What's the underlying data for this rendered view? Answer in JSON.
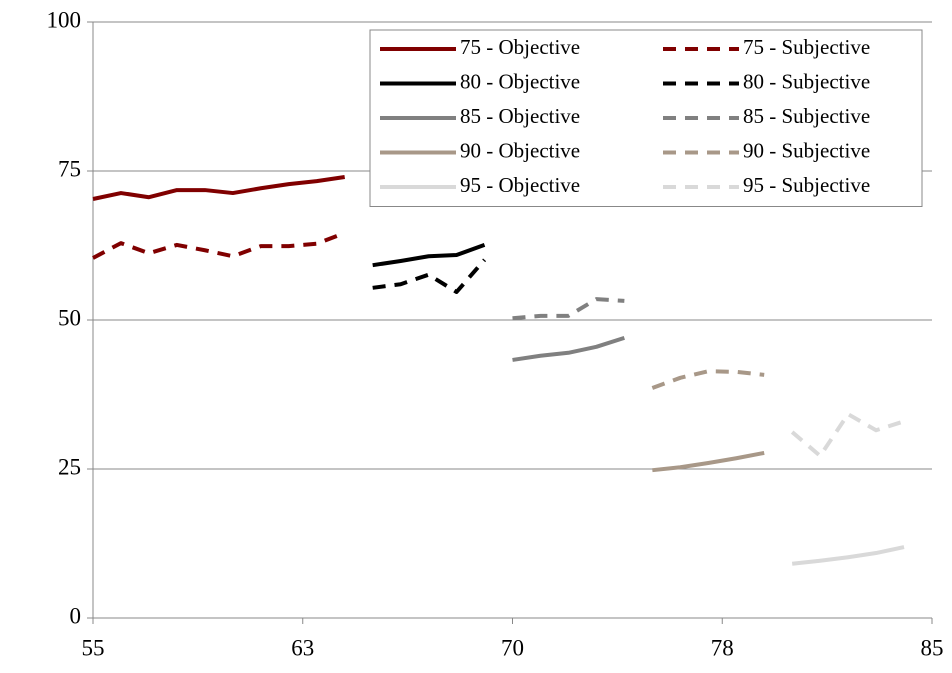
{
  "chart_data": {
    "type": "line",
    "xlim": [
      55,
      85
    ],
    "xticks": [
      55,
      {
        "value": 62.5,
        "label": "63"
      },
      70,
      {
        "value": 77.5,
        "label": "78"
      },
      85
    ],
    "ylim": [
      0,
      100
    ],
    "yticks": [
      0,
      25,
      50,
      75,
      100
    ],
    "grid": true,
    "legend": "top-right",
    "series": [
      {
        "name": "75 - Objective",
        "color": "#800000",
        "dashed": false,
        "x": [
          55,
          56,
          57,
          58,
          59,
          60,
          61,
          62,
          63,
          64
        ],
        "values": [
          70.3,
          71.3,
          70.6,
          71.8,
          71.8,
          71.3,
          72.1,
          72.8,
          73.3,
          74.0
        ]
      },
      {
        "name": "75 - Subjective",
        "color": "#800000",
        "dashed": true,
        "x": [
          55,
          56,
          57,
          58,
          59,
          60,
          61,
          62,
          63,
          64
        ],
        "values": [
          60.4,
          62.9,
          61.2,
          62.6,
          61.7,
          60.7,
          62.4,
          62.4,
          62.8,
          64.6
        ]
      },
      {
        "name": "80 - Objective",
        "color": "#000000",
        "dashed": false,
        "x": [
          65,
          66,
          67,
          68,
          69
        ],
        "values": [
          59.2,
          59.9,
          60.7,
          60.9,
          62.6
        ]
      },
      {
        "name": "80 - Subjective",
        "color": "#000000",
        "dashed": true,
        "x": [
          65,
          66,
          67,
          68,
          69
        ],
        "values": [
          55.4,
          56.0,
          57.6,
          54.7,
          60.1
        ]
      },
      {
        "name": "85 - Objective",
        "color": "#808080",
        "dashed": false,
        "x": [
          70,
          71,
          72,
          73,
          74
        ],
        "values": [
          43.3,
          44.0,
          44.5,
          45.5,
          47.0
        ]
      },
      {
        "name": "85 - Subjective",
        "color": "#808080",
        "dashed": true,
        "x": [
          70,
          71,
          72,
          73,
          74
        ],
        "values": [
          50.3,
          50.7,
          50.7,
          53.5,
          53.2
        ]
      },
      {
        "name": "90 - Objective",
        "color": "#a89888",
        "dashed": false,
        "x": [
          75,
          76,
          77,
          78,
          79
        ],
        "values": [
          24.8,
          25.3,
          26.0,
          26.8,
          27.7
        ]
      },
      {
        "name": "90 - Subjective",
        "color": "#a89888",
        "dashed": true,
        "x": [
          75,
          76,
          77,
          78,
          79
        ],
        "values": [
          38.6,
          40.3,
          41.4,
          41.3,
          40.8
        ]
      },
      {
        "name": "95 - Objective",
        "color": "#d9d9d9",
        "dashed": false,
        "x": [
          80,
          81,
          82,
          83,
          84
        ],
        "values": [
          9.1,
          9.6,
          10.2,
          10.9,
          11.9
        ]
      },
      {
        "name": "95 - Subjective",
        "color": "#d9d9d9",
        "dashed": true,
        "x": [
          80,
          81,
          82,
          83,
          84
        ],
        "values": [
          31.2,
          27.2,
          34.2,
          31.5,
          33.0
        ]
      }
    ]
  }
}
